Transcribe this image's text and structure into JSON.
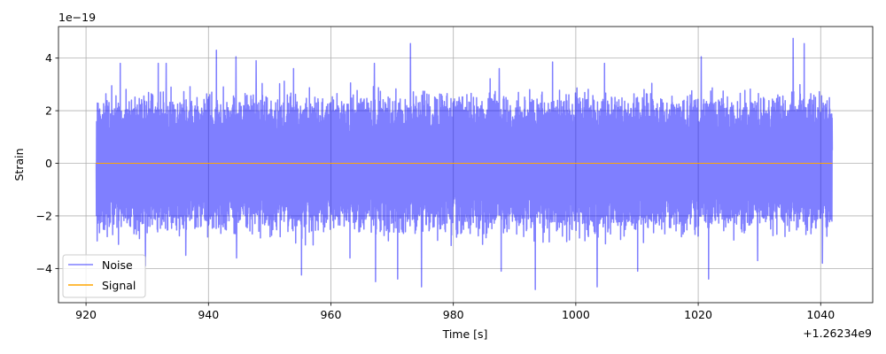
{
  "chart_data": {
    "type": "line",
    "title": "",
    "xlabel": "Time [s]",
    "ylabel": "Strain",
    "x_offset_label": "+1.26234e9",
    "y_scale_label": "1e−19",
    "xlim": [
      915.5,
      1048.5
    ],
    "ylim": [
      -5.3,
      5.2
    ],
    "x_ticks": [
      920,
      940,
      960,
      980,
      1000,
      1020,
      1040
    ],
    "x_tick_labels": [
      "920",
      "940",
      "960",
      "980",
      "1000",
      "1020",
      "1040"
    ],
    "y_ticks": [
      -4,
      -2,
      0,
      2,
      4
    ],
    "y_tick_labels": [
      "−4",
      "−2",
      "0",
      "2",
      "4"
    ],
    "grid": true,
    "legend_position": "lower-left",
    "series": [
      {
        "name": "Noise",
        "color": "#0000ff",
        "opacity": 0.5,
        "x_range": [
          921.6,
          1041.9
        ],
        "typical_amplitude": 2.1,
        "peak_max": 4.75,
        "peak_min": -4.8,
        "peaks": [
          {
            "x": 925.6,
            "y": 3.8
          },
          {
            "x": 931.8,
            "y": 3.8
          },
          {
            "x": 933.1,
            "y": 3.8
          },
          {
            "x": 941.3,
            "y": 4.3
          },
          {
            "x": 944.5,
            "y": 4.05
          },
          {
            "x": 947.8,
            "y": 3.9
          },
          {
            "x": 953.9,
            "y": 3.6
          },
          {
            "x": 967.1,
            "y": 3.8
          },
          {
            "x": 973.0,
            "y": 4.55
          },
          {
            "x": 987.5,
            "y": 3.6
          },
          {
            "x": 996.2,
            "y": 3.85
          },
          {
            "x": 1004.7,
            "y": 3.8
          },
          {
            "x": 1020.5,
            "y": 4.05
          },
          {
            "x": 1035.5,
            "y": 4.75
          },
          {
            "x": 1037.3,
            "y": 4.55
          },
          {
            "x": 929.7,
            "y": -3.9
          },
          {
            "x": 936.3,
            "y": -3.5
          },
          {
            "x": 944.6,
            "y": -3.6
          },
          {
            "x": 955.2,
            "y": -4.25
          },
          {
            "x": 963.1,
            "y": -3.6
          },
          {
            "x": 967.3,
            "y": -4.5
          },
          {
            "x": 970.9,
            "y": -4.4
          },
          {
            "x": 974.8,
            "y": -4.7
          },
          {
            "x": 987.8,
            "y": -4.1
          },
          {
            "x": 993.4,
            "y": -4.8
          },
          {
            "x": 1003.5,
            "y": -4.7
          },
          {
            "x": 1010.1,
            "y": -4.1
          },
          {
            "x": 1021.7,
            "y": -4.4
          },
          {
            "x": 1029.7,
            "y": -3.7
          },
          {
            "x": 1040.3,
            "y": -3.8
          }
        ]
      },
      {
        "name": "Signal",
        "color": "#ffa500",
        "x_range": [
          921.6,
          1041.9
        ],
        "value": 0.0
      }
    ]
  }
}
